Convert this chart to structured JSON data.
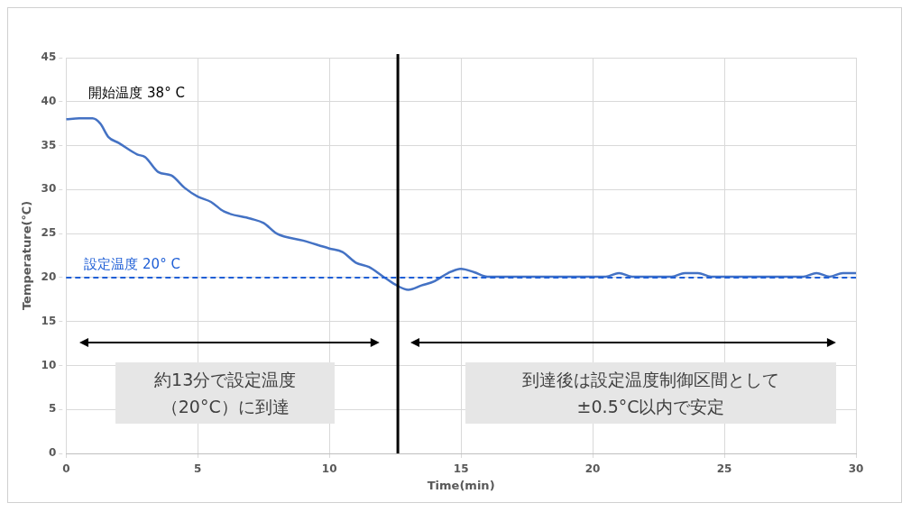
{
  "chart_data": {
    "type": "line",
    "xlabel": "Time(min)",
    "ylabel": "Temperature(℃)",
    "series": [
      {
        "color": "#4472c4",
        "x": [
          0,
          0.5,
          1,
          1.3,
          1.6,
          2,
          2.7,
          3,
          3.5,
          4,
          4.5,
          5,
          5.5,
          6,
          7,
          7.5,
          8,
          9,
          10,
          10.5,
          11,
          11.5,
          12,
          12.5,
          13,
          13.5,
          14,
          14.5,
          15,
          15.5,
          16,
          20.5,
          21,
          21.5,
          23,
          23.5,
          24,
          24.5,
          28,
          28.5,
          29,
          29.5,
          30
        ],
        "values": [
          38,
          38.1,
          38.1,
          37.5,
          36,
          35.3,
          34,
          33.7,
          32,
          31.6,
          30.2,
          29.2,
          28.6,
          27.5,
          26.7,
          26.2,
          25,
          24.2,
          23.3,
          22.9,
          21.7,
          21.2,
          20.2,
          19.2,
          18.6,
          19.1,
          19.6,
          20.5,
          21,
          20.6,
          20.1,
          20.1,
          20.5,
          20.1,
          20.1,
          20.5,
          20.5,
          20.1,
          20.1,
          20.5,
          20.1,
          20.5,
          20.5
        ]
      }
    ],
    "xlim": [
      0,
      30
    ],
    "xticks": [
      0,
      5,
      10,
      15,
      20,
      25,
      30
    ],
    "ylim": [
      0,
      45
    ],
    "yticks": [
      0,
      5,
      10,
      15,
      20,
      25,
      30,
      35,
      40,
      45
    ],
    "grid": true,
    "marker": "none",
    "line_style": "solid",
    "legend": false,
    "ref_lines": [
      {
        "axis": "y",
        "value": 20,
        "label": "設定温度 20° C",
        "color": "#1f5fd6",
        "line_style": "dashed"
      },
      {
        "axis": "x",
        "value": 12.6,
        "color": "#000000",
        "line_style": "solid"
      }
    ],
    "annotations": [
      "開始温度 38° C",
      "約13分で設定温度（20°C）に到達",
      "到達後は設定温度制御区間として±0.5°C以内で安定"
    ]
  }
}
